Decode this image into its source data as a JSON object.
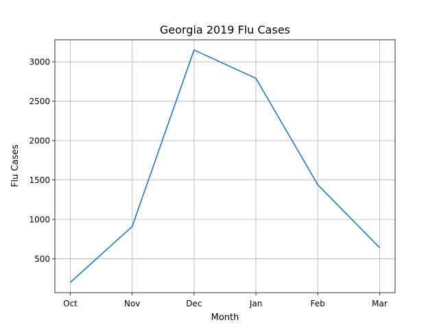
{
  "chart_data": {
    "type": "line",
    "title": "Georgia 2019 Flu Cases",
    "xlabel": "Month",
    "ylabel": "Flu Cases",
    "categories": [
      "Oct",
      "Nov",
      "Dec",
      "Jan",
      "Feb",
      "Mar"
    ],
    "series": [
      {
        "values": [
          200,
          910,
          3150,
          2790,
          1440,
          640
        ],
        "color": "#1f77b4"
      }
    ],
    "ylim": [
      70,
      3280
    ],
    "yticks": [
      500,
      1000,
      1500,
      2000,
      2500,
      3000
    ],
    "grid": true
  }
}
